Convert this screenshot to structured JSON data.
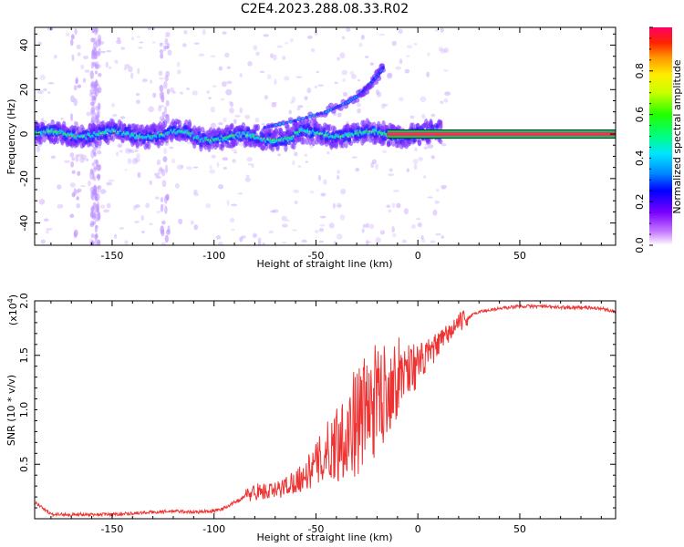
{
  "title": "C2E4.2023.288.08.33.R02",
  "colors": {
    "snr_line": "#ee3333",
    "carrier_band": "#ff2a55",
    "carrier_edge": "#00cc66"
  },
  "chart_data": [
    {
      "type": "heatmap",
      "name": "spectrogram",
      "xlabel": "Height of straight line (km)",
      "ylabel": "Frequency (Hz)",
      "xlim": [
        -188,
        97
      ],
      "ylim": [
        -50,
        48
      ],
      "xticks": [
        -150,
        -100,
        -50,
        0,
        50
      ],
      "yticks": [
        -40,
        -20,
        0,
        20,
        40
      ],
      "colorbar": {
        "label": "Normalized spectral amplitude",
        "range": [
          0,
          1
        ],
        "ticks": [
          "0.0",
          "0.2",
          "0.4",
          "0.6",
          "0.8"
        ],
        "tick_values": [
          0.0,
          0.2,
          0.4,
          0.6,
          0.8
        ],
        "colormap": "rainbow"
      },
      "carrier": {
        "freq_hz": 0,
        "strong_from_km": -15,
        "strong_to_km": 97
      },
      "secondary_branch": [
        {
          "x": -75,
          "y": 3
        },
        {
          "x": -60,
          "y": 6
        },
        {
          "x": -45,
          "y": 10
        },
        {
          "x": -35,
          "y": 14
        },
        {
          "x": -28,
          "y": 18
        },
        {
          "x": -24,
          "y": 22
        },
        {
          "x": -20,
          "y": 26
        },
        {
          "x": -17,
          "y": 30
        }
      ]
    },
    {
      "type": "line",
      "name": "snr",
      "xlabel": "Height of straight line (km)",
      "ylabel": "SNR (10 * v/v)",
      "exponent_label": "(x10",
      "exponent_sup": "4",
      "exponent_close": ")",
      "xlim": [
        -188,
        97
      ],
      "ylim": [
        0,
        2.0
      ],
      "xticks": [
        -150,
        -100,
        -50,
        0,
        50
      ],
      "yticks": [
        "0.5",
        "1.0",
        "1.5",
        "2.0"
      ],
      "ytick_values": [
        0.5,
        1.0,
        1.5,
        2.0
      ],
      "series": [
        {
          "x": [
            -188,
            -180,
            -170,
            -160,
            -150,
            -140,
            -130,
            -120,
            -110,
            -100,
            -95,
            -90,
            -85,
            -80,
            -75,
            -70,
            -65,
            -60,
            -55,
            -50,
            -45,
            -40,
            -35,
            -30,
            -25,
            -20,
            -15,
            -10,
            -5,
            0,
            5,
            10,
            15,
            20,
            25,
            30,
            40,
            50,
            60,
            70,
            80,
            90,
            97
          ],
          "y": [
            0.15,
            0.04,
            0.04,
            0.04,
            0.04,
            0.05,
            0.06,
            0.07,
            0.06,
            0.07,
            0.1,
            0.15,
            0.2,
            0.25,
            0.25,
            0.25,
            0.3,
            0.35,
            0.4,
            0.5,
            0.6,
            0.7,
            0.8,
            0.9,
            1.0,
            1.1,
            1.2,
            1.3,
            1.4,
            1.4,
            1.5,
            1.6,
            1.7,
            1.8,
            1.85,
            1.9,
            1.93,
            1.95,
            1.95,
            1.94,
            1.94,
            1.93,
            1.9
          ]
        }
      ]
    }
  ]
}
